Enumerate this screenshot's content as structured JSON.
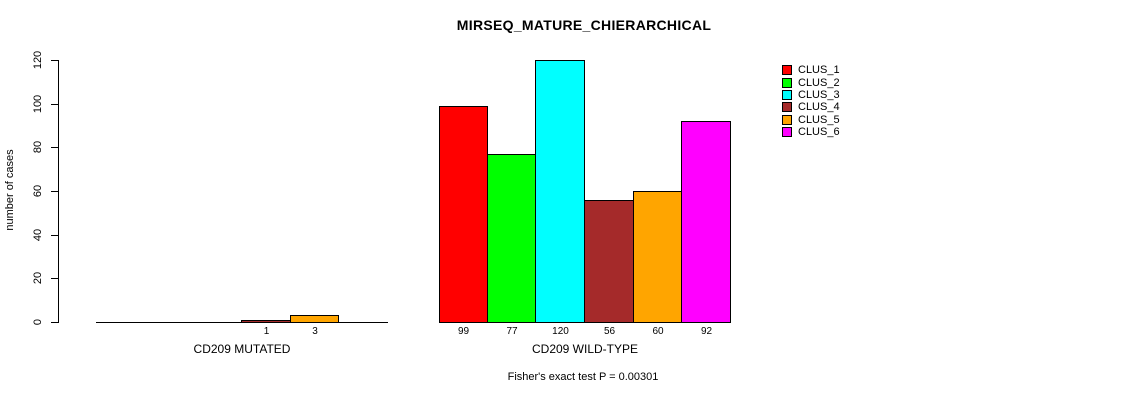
{
  "chart_data": {
    "type": "bar",
    "title": "MIRSEQ_MATURE_CHIERARCHICAL",
    "xlabel": "",
    "ylabel": "number of cases",
    "ylim": [
      0,
      120
    ],
    "yticks": [
      0,
      20,
      40,
      60,
      80,
      100,
      120
    ],
    "grid": false,
    "legend_position": "right",
    "categories": [
      "CD209 MUTATED",
      "CD209 WILD-TYPE"
    ],
    "series": [
      {
        "name": "CLUS_1",
        "color": "#FF0000",
        "values": [
          0,
          99
        ]
      },
      {
        "name": "CLUS_2",
        "color": "#00FF00",
        "values": [
          0,
          77
        ]
      },
      {
        "name": "CLUS_3",
        "color": "#00FFFF",
        "values": [
          0,
          120
        ]
      },
      {
        "name": "CLUS_4",
        "color": "#A52A2A",
        "values": [
          1,
          56
        ]
      },
      {
        "name": "CLUS_5",
        "color": "#FFA500",
        "values": [
          3,
          60
        ]
      },
      {
        "name": "CLUS_6",
        "color": "#FF00FF",
        "values": [
          0,
          92
        ]
      }
    ],
    "bar_value_labels": [
      [
        "",
        "",
        "",
        "1",
        "3",
        ""
      ],
      [
        "99",
        "77",
        "120",
        "56",
        "60",
        "92"
      ]
    ],
    "annotation": "Fisher's exact test P = 0.00301"
  },
  "colors": {
    "axis": "#000000",
    "background": "#FFFFFF",
    "text": "#000000"
  }
}
